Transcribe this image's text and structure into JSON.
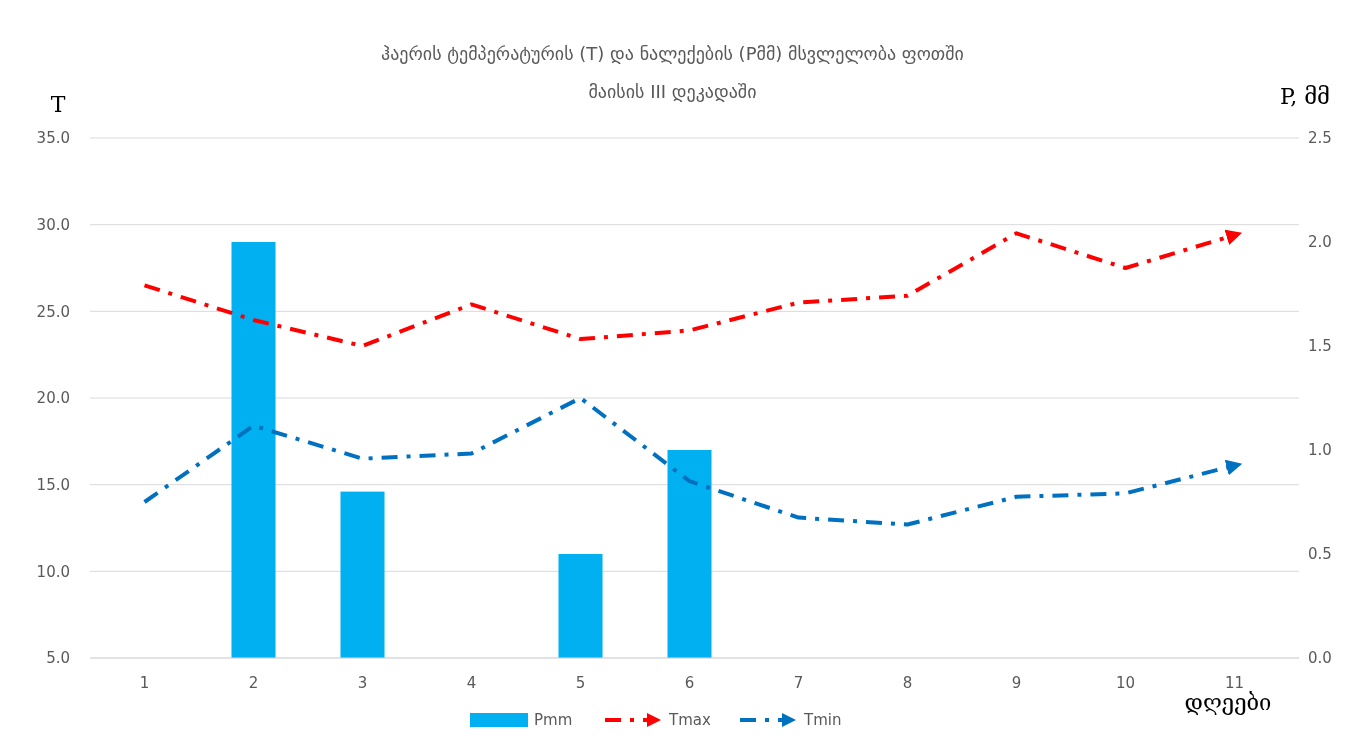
{
  "chart_data": {
    "type": "bar",
    "title": "ჰაერის ტემპერატურის (T) და ნალექების (Pმმ)  მსვლელობა ფოთში",
    "subtitle": "მაისის III  დეკადაში",
    "ylabel": "T",
    "y2label": "P, მმ",
    "xlabel": "დღეები",
    "categories": [
      "1",
      "2",
      "3",
      "4",
      "5",
      "6",
      "7",
      "8",
      "9",
      "10",
      "11"
    ],
    "series": [
      {
        "name": "Pmm",
        "axis": "y2",
        "color": "#00b0f0",
        "values": [
          null,
          2.0,
          0.8,
          null,
          0.5,
          1.0,
          null,
          null,
          null,
          null,
          null
        ]
      },
      {
        "name": "Tmax",
        "type": "line",
        "color": "#ff0000",
        "line_style": "dashed",
        "values": [
          26.5,
          24.5,
          23.0,
          25.4,
          23.4,
          23.9,
          25.5,
          25.9,
          29.5,
          27.5,
          29.4
        ]
      },
      {
        "name": "Tmin",
        "type": "line",
        "color": "#0070c0",
        "line_style": "dashed",
        "values": [
          14.0,
          18.4,
          16.5,
          16.8,
          20.0,
          15.2,
          13.1,
          12.7,
          14.3,
          14.5,
          16.1
        ]
      }
    ],
    "ylim": [
      5,
      35
    ],
    "yticks": [
      {
        "value": 5,
        "label": "5.0"
      },
      {
        "value": 10,
        "label": "10.0"
      },
      {
        "value": 15,
        "label": "15.0"
      },
      {
        "value": 20,
        "label": "20.0"
      },
      {
        "value": 25,
        "label": "25.0"
      },
      {
        "value": 30,
        "label": "30.0"
      },
      {
        "value": 35,
        "label": "35.0"
      }
    ],
    "y2lim": [
      0,
      2.5
    ],
    "y2ticks": [
      {
        "value": 0,
        "label": "0.0"
      },
      {
        "value": 0.5,
        "label": "0.5"
      },
      {
        "value": 1,
        "label": "1.0"
      },
      {
        "value": 1.5,
        "label": "1.5"
      },
      {
        "value": 2,
        "label": "2.0"
      },
      {
        "value": 2.5,
        "label": "2.5"
      }
    ],
    "grid": "y",
    "legend": "bottom"
  }
}
